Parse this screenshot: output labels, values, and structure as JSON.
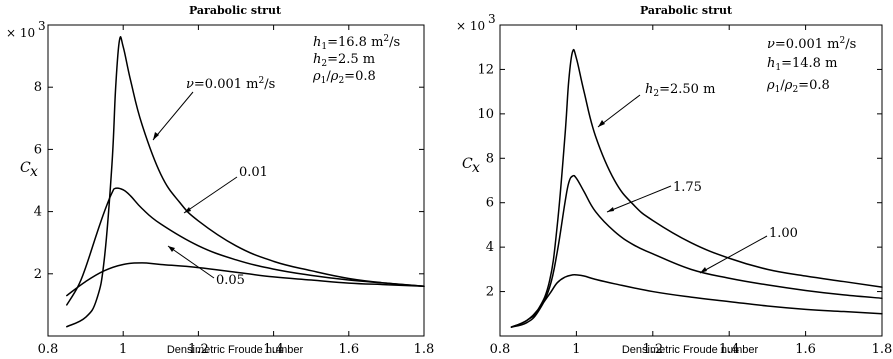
{
  "chart_data": [
    {
      "type": "line",
      "title": "Parabolic strut",
      "xlabel": "Densimetric Froude number",
      "ylabel": "C_x",
      "y_multiplier": "× 10^3",
      "xlim": [
        0.8,
        1.8
      ],
      "ylim": [
        0,
        10
      ],
      "xticks": [
        0.8,
        1.0,
        1.2,
        1.4,
        1.6,
        1.8
      ],
      "yticks": [
        2,
        4,
        6,
        8
      ],
      "xtick_labels": [
        "0.8",
        "1",
        "1.2",
        "1.4",
        "1.6",
        "1.8"
      ],
      "ytick_labels": [
        "2",
        "4",
        "6",
        "8"
      ],
      "params": [
        "h1=16.8 m²/s",
        "h2=2.5 m",
        "ρ1/ρ2=0.8"
      ],
      "series": [
        {
          "name": "ν=0.001 m²/s",
          "x": [
            0.85,
            0.9,
            0.93,
            0.95,
            0.97,
            0.98,
            0.99,
            1.0,
            1.02,
            1.05,
            1.1,
            1.15,
            1.2,
            1.3,
            1.4,
            1.5,
            1.6,
            1.7,
            1.8
          ],
          "y": [
            0.3,
            0.6,
            1.2,
            2.5,
            5.5,
            8.0,
            9.5,
            9.3,
            8.2,
            6.8,
            5.2,
            4.3,
            3.7,
            2.9,
            2.4,
            2.1,
            1.85,
            1.7,
            1.6
          ]
        },
        {
          "name": "0.01",
          "x": [
            0.85,
            0.88,
            0.9,
            0.93,
            0.95,
            0.97,
            0.98,
            1.0,
            1.02,
            1.05,
            1.1,
            1.2,
            1.3,
            1.4,
            1.5,
            1.6,
            1.7,
            1.8
          ],
          "y": [
            1.0,
            1.6,
            2.2,
            3.3,
            4.0,
            4.6,
            4.75,
            4.7,
            4.5,
            4.1,
            3.6,
            2.9,
            2.45,
            2.15,
            1.95,
            1.8,
            1.7,
            1.6
          ]
        },
        {
          "name": "0.05",
          "x": [
            0.85,
            0.9,
            0.95,
            1.0,
            1.05,
            1.1,
            1.2,
            1.3,
            1.4,
            1.5,
            1.6,
            1.7,
            1.8
          ],
          "y": [
            1.3,
            1.75,
            2.1,
            2.3,
            2.35,
            2.3,
            2.2,
            2.05,
            1.9,
            1.8,
            1.7,
            1.65,
            1.6
          ]
        }
      ]
    },
    {
      "type": "line",
      "title": "Parabolic strut",
      "xlabel": "Densimetric Froude number",
      "ylabel": "C_x",
      "y_multiplier": "× 10^3",
      "xlim": [
        0.8,
        1.8
      ],
      "ylim": [
        0,
        14
      ],
      "xticks": [
        0.8,
        1.0,
        1.2,
        1.4,
        1.6,
        1.8
      ],
      "yticks": [
        2,
        4,
        6,
        8,
        10,
        12
      ],
      "xtick_labels": [
        "0.8",
        "1",
        "1.2",
        "1.4",
        "1.6",
        "1.8"
      ],
      "ytick_labels": [
        "2",
        "4",
        "6",
        "8",
        "10",
        "12"
      ],
      "params": [
        "ν=0.001 m²/s",
        "h1=14.8 m",
        "ρ1/ρ2=0.8"
      ],
      "series": [
        {
          "name": "h2=2.50 m",
          "x": [
            0.83,
            0.87,
            0.9,
            0.93,
            0.95,
            0.97,
            0.98,
            0.99,
            1.0,
            1.02,
            1.05,
            1.1,
            1.15,
            1.2,
            1.3,
            1.4,
            1.5,
            1.6,
            1.7,
            1.8
          ],
          "y": [
            0.4,
            0.7,
            1.2,
            2.5,
            5.0,
            9.0,
            11.5,
            12.8,
            12.5,
            11.0,
            9.0,
            7.0,
            5.9,
            5.2,
            4.2,
            3.5,
            3.0,
            2.7,
            2.45,
            2.2
          ]
        },
        {
          "name": "1.75",
          "x": [
            0.83,
            0.87,
            0.9,
            0.93,
            0.95,
            0.97,
            0.98,
            0.99,
            1.0,
            1.02,
            1.05,
            1.1,
            1.15,
            1.2,
            1.3,
            1.4,
            1.5,
            1.6,
            1.7,
            1.8
          ],
          "y": [
            0.4,
            0.6,
            1.1,
            2.2,
            3.8,
            6.0,
            6.9,
            7.2,
            7.1,
            6.5,
            5.6,
            4.7,
            4.1,
            3.7,
            3.0,
            2.6,
            2.3,
            2.05,
            1.85,
            1.7
          ]
        },
        {
          "name": "1.00",
          "x": [
            0.83,
            0.87,
            0.9,
            0.93,
            0.95,
            0.97,
            0.99,
            1.0,
            1.02,
            1.05,
            1.1,
            1.2,
            1.3,
            1.4,
            1.5,
            1.6,
            1.7,
            1.8
          ],
          "y": [
            0.4,
            0.7,
            1.2,
            1.9,
            2.4,
            2.65,
            2.75,
            2.75,
            2.7,
            2.55,
            2.35,
            2.0,
            1.75,
            1.55,
            1.35,
            1.2,
            1.1,
            1.0
          ]
        }
      ]
    }
  ]
}
